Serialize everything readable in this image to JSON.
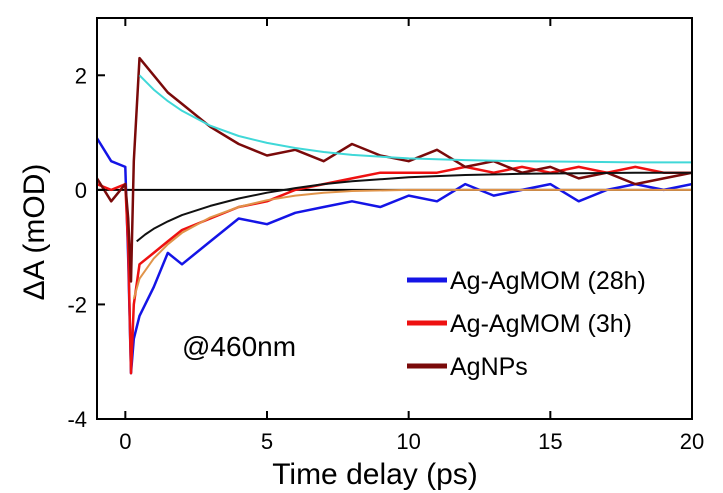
{
  "chart_data": {
    "type": "line",
    "title": "",
    "xlabel": "Time delay (ps)",
    "ylabel": "ΔA (mOD)",
    "xlim": [
      -1,
      20
    ],
    "ylim": [
      -4,
      3
    ],
    "xticks": [
      0,
      5,
      10,
      15,
      20
    ],
    "yticks": [
      -4,
      -2,
      0,
      2
    ],
    "xtick_labels": [
      "0",
      "5",
      "10",
      "15",
      "20"
    ],
    "ytick_labels": [
      "-4",
      "-2",
      "0",
      "2"
    ],
    "grid": false,
    "legend_position": "bottom-right",
    "annotation": "@460nm",
    "zero_line": true,
    "series": [
      {
        "name": "Ag-AgMOM (28h)",
        "color": "#1414e6",
        "x": [
          -1,
          -0.5,
          0,
          0.1,
          0.2,
          0.3,
          0.5,
          1,
          1.5,
          2,
          3,
          4,
          5,
          6,
          7,
          8,
          9,
          10,
          11,
          12,
          13,
          14,
          15,
          16,
          17,
          18,
          19,
          20
        ],
        "y": [
          0.9,
          0.5,
          0.4,
          -1.2,
          -3.2,
          -2.6,
          -2.2,
          -1.7,
          -1.1,
          -1.3,
          -0.9,
          -0.5,
          -0.6,
          -0.4,
          -0.3,
          -0.2,
          -0.3,
          -0.1,
          -0.2,
          0.1,
          -0.1,
          0.0,
          0.1,
          -0.2,
          0.0,
          0.1,
          0.0,
          0.1
        ]
      },
      {
        "name": "Ag-AgMOM (3h)",
        "color": "#ee1111",
        "x": [
          -1,
          -0.5,
          0,
          0.1,
          0.2,
          0.3,
          0.5,
          1,
          1.5,
          2,
          3,
          4,
          5,
          6,
          7,
          8,
          9,
          10,
          11,
          12,
          13,
          14,
          15,
          16,
          17,
          18,
          19,
          20
        ],
        "y": [
          0.1,
          0.0,
          0.1,
          -1.0,
          -3.2,
          -2.0,
          -1.3,
          -1.1,
          -0.9,
          -0.7,
          -0.5,
          -0.3,
          -0.2,
          0.0,
          0.1,
          0.2,
          0.3,
          0.3,
          0.3,
          0.4,
          0.3,
          0.4,
          0.3,
          0.4,
          0.3,
          0.4,
          0.3,
          0.3
        ]
      },
      {
        "name": "AgNPs",
        "color": "#7a0a0a",
        "x": [
          -1,
          -0.5,
          0,
          0.1,
          0.2,
          0.3,
          0.5,
          1,
          1.5,
          2,
          3,
          4,
          5,
          6,
          7,
          8,
          9,
          10,
          11,
          12,
          13,
          14,
          15,
          16,
          17,
          18,
          19,
          20
        ],
        "y": [
          0.2,
          -0.2,
          0.1,
          -0.5,
          -1.6,
          0.5,
          2.3,
          2.0,
          1.7,
          1.5,
          1.1,
          0.8,
          0.6,
          0.7,
          0.5,
          0.8,
          0.6,
          0.5,
          0.7,
          0.4,
          0.5,
          0.3,
          0.4,
          0.2,
          0.3,
          0.1,
          0.2,
          0.3
        ]
      },
      {
        "name": "",
        "color": "#40d8d8",
        "role": "fit",
        "x": [
          0.5,
          1,
          1.5,
          2,
          3,
          4,
          5,
          6,
          7,
          8,
          10,
          12,
          14,
          16,
          18,
          20
        ],
        "y": [
          2.0,
          1.75,
          1.55,
          1.38,
          1.12,
          0.94,
          0.82,
          0.73,
          0.66,
          0.61,
          0.55,
          0.52,
          0.5,
          0.49,
          0.48,
          0.48
        ]
      },
      {
        "name": "",
        "color": "#111111",
        "role": "fit",
        "x": [
          0.4,
          0.7,
          1,
          1.5,
          2,
          3,
          4,
          5,
          6,
          7,
          8,
          10,
          12,
          14,
          16,
          18,
          20
        ],
        "y": [
          -0.9,
          -0.78,
          -0.68,
          -0.55,
          -0.44,
          -0.28,
          -0.15,
          -0.05,
          0.03,
          0.1,
          0.15,
          0.22,
          0.26,
          0.28,
          0.29,
          0.3,
          0.3
        ]
      },
      {
        "name": "",
        "color": "#e0944a",
        "role": "fit",
        "x": [
          0.3,
          0.5,
          1,
          1.5,
          2,
          3,
          4,
          5,
          6,
          7,
          8,
          10,
          12,
          14,
          16,
          18,
          20
        ],
        "y": [
          -1.9,
          -1.55,
          -1.2,
          -0.95,
          -0.75,
          -0.48,
          -0.3,
          -0.18,
          -0.1,
          -0.05,
          -0.02,
          0.0,
          0.0,
          0.0,
          0.0,
          0.0,
          0.0
        ]
      }
    ]
  }
}
